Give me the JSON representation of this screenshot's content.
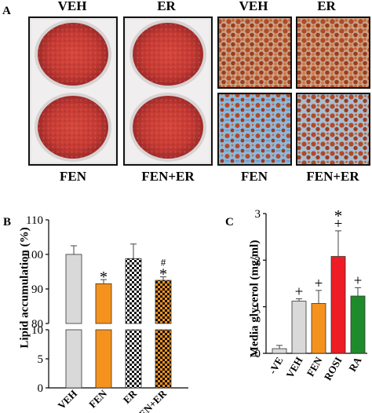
{
  "panel_a": {
    "letter": "A",
    "dish_top_labels": [
      "VEH",
      "ER"
    ],
    "dish_bottom_labels": [
      "FEN",
      "FEN+ER"
    ],
    "micro_top_labels": [
      "VEH",
      "ER"
    ],
    "micro_bottom_labels": [
      "FEN",
      "FEN+ER"
    ]
  },
  "panel_b": {
    "letter": "B",
    "ylabel": "Lipid accumulation (%)",
    "chart_data": {
      "type": "bar",
      "categories": [
        "VEH",
        "FEN",
        "ER",
        "FEN+ER"
      ],
      "values": [
        100,
        91.5,
        98.8,
        92.5
      ],
      "errors": [
        2.5,
        1.2,
        4.2,
        1.0
      ],
      "annotations": [
        "",
        "*",
        "",
        "*"
      ],
      "annotations_top": [
        "",
        "",
        "",
        "#"
      ],
      "upper_yticks": [
        80,
        90,
        100,
        110
      ],
      "lower_yticks": [
        0,
        5,
        10
      ],
      "ylim_upper": [
        80,
        110
      ],
      "ylim_lower": [
        0,
        10
      ],
      "fills": [
        "#d9d9d9",
        "#f5921e",
        "checker-black",
        "checker-orange"
      ]
    }
  },
  "panel_c": {
    "letter": "C",
    "ylabel": "Media glycerol (mg/ml)",
    "chart_data": {
      "type": "bar",
      "categories": [
        "-VE",
        "VEH",
        "FEN",
        "ROSI",
        "RA"
      ],
      "values": [
        0.1,
        1.12,
        1.07,
        2.08,
        1.23
      ],
      "errors": [
        0.07,
        0.05,
        0.28,
        0.55,
        0.18
      ],
      "annotations": [
        "",
        "+",
        "+",
        "+",
        "+"
      ],
      "annotations_top": [
        "",
        "",
        "",
        "*",
        ""
      ],
      "yticks": [
        0,
        1,
        2,
        3
      ],
      "ylim": [
        0,
        3
      ],
      "fills": [
        "#d9d9d9",
        "#d9d9d9",
        "#f5921e",
        "#ee1c24",
        "#1e8b2a"
      ]
    }
  }
}
